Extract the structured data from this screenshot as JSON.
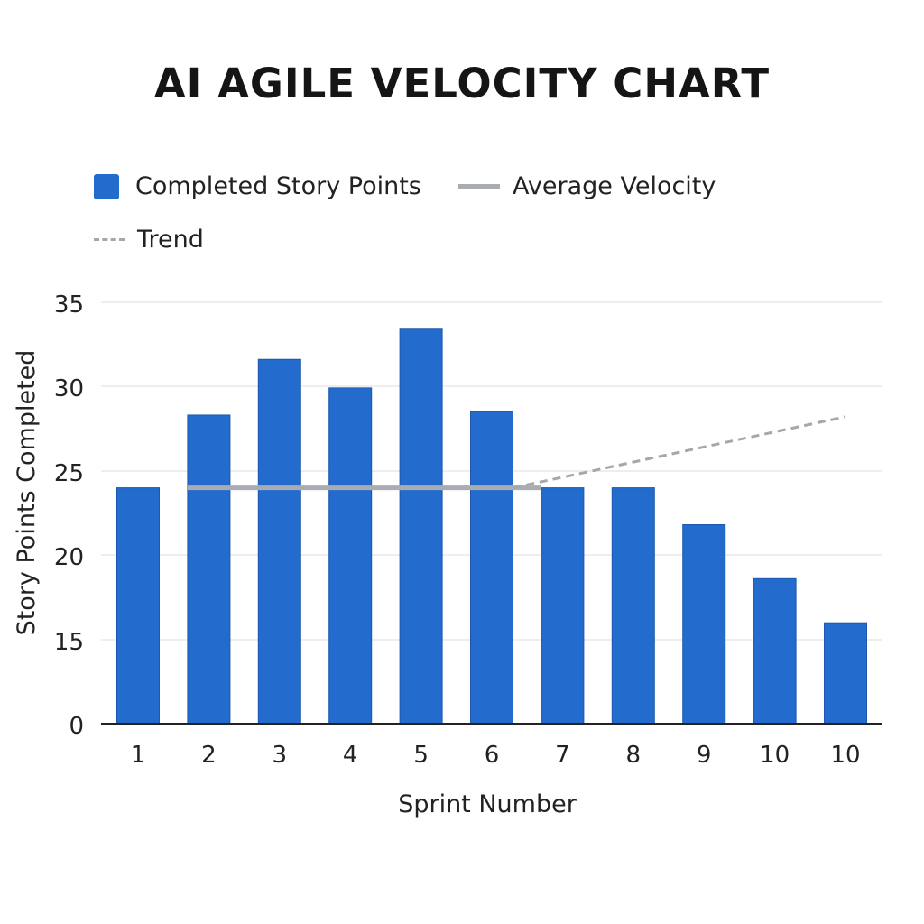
{
  "chart_data": {
    "type": "bar",
    "title": "AI AGILE VELOCITY CHART",
    "xlabel": "Sprint Number",
    "ylabel": "Story Points Completed",
    "categories": [
      "1",
      "2",
      "3",
      "4",
      "5",
      "6",
      "7",
      "8",
      "9",
      "10",
      "10"
    ],
    "series": [
      {
        "name": "Completed Story Points",
        "type": "bar",
        "color": "#246bce",
        "values": [
          24,
          28.3,
          31.6,
          29.9,
          33.4,
          28.5,
          24,
          24,
          21.8,
          18.6,
          16
        ]
      },
      {
        "name": "Average Velocity",
        "type": "line",
        "color": "#a9adb2",
        "x": [
          "2",
          "7"
        ],
        "values": [
          24,
          24
        ]
      },
      {
        "name": "Trend",
        "type": "dashed-line",
        "color": "#a3a8ae",
        "x": [
          "6",
          "10"
        ],
        "values": [
          24,
          28.2
        ]
      }
    ],
    "yticks": [
      "0",
      "15",
      "20",
      "25",
      "30",
      "35"
    ],
    "ylim": [
      0,
      35
    ],
    "grid": true,
    "legend_position": "top-left"
  }
}
